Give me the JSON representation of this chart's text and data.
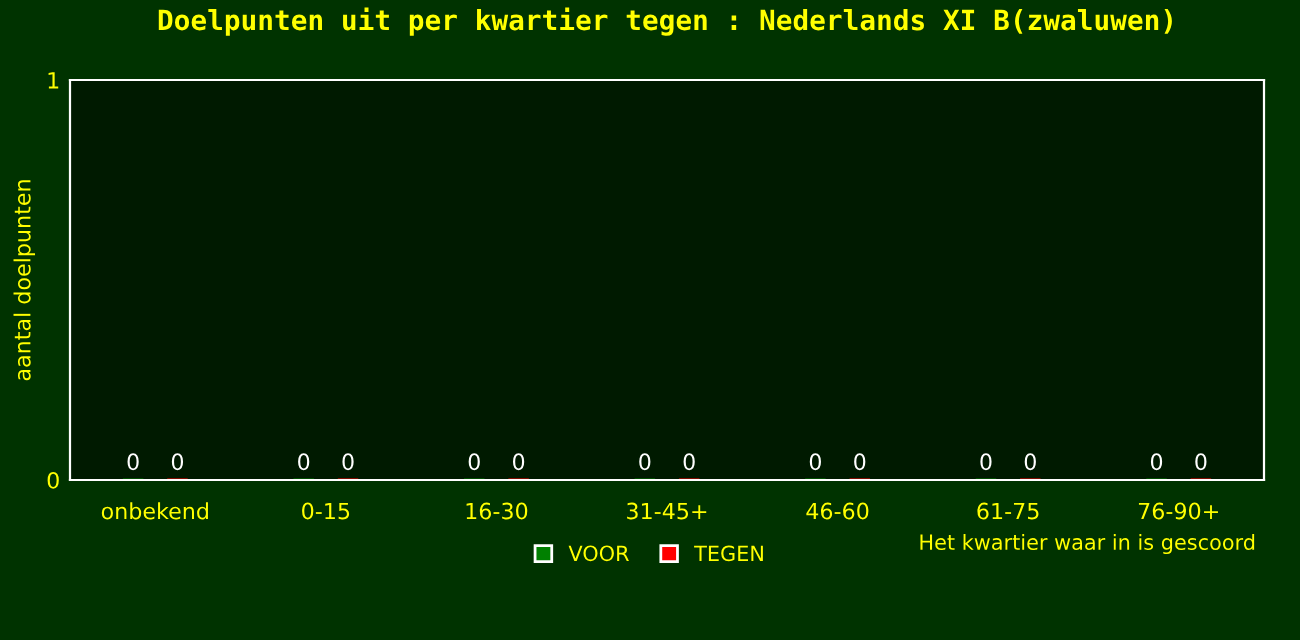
{
  "chart_data": {
    "type": "bar",
    "title": "Doelpunten uit per kwartier tegen : Nederlands XI B(zwaluwen)",
    "ylabel": "aantal doelpunten",
    "xlabel": "Het kwartier waar in is gescoord",
    "categories": [
      "onbekend",
      "0-15",
      "16-30",
      "31-45+",
      "46-60",
      "61-75",
      "76-90+"
    ],
    "series": [
      {
        "name": "VOOR",
        "color": "#008000",
        "values": [
          0,
          0,
          0,
          0,
          0,
          0,
          0
        ]
      },
      {
        "name": "TEGEN",
        "color": "#ff0000",
        "values": [
          0,
          0,
          0,
          0,
          0,
          0,
          0
        ]
      }
    ],
    "ylim": [
      0,
      1
    ],
    "yticks": [
      0,
      1
    ],
    "data_labels": true,
    "grid": false,
    "legend": "bottom"
  }
}
